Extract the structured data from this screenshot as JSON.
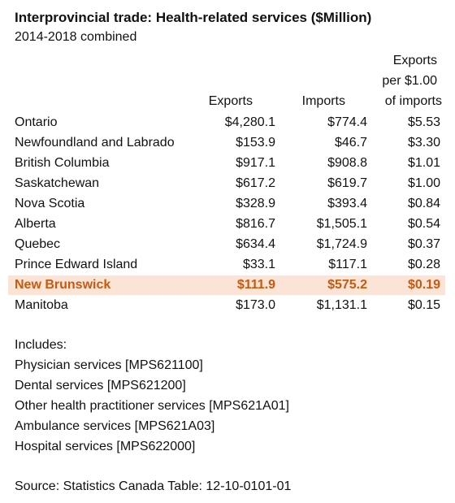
{
  "chart_data": {
    "type": "table",
    "title": "Interprovincial trade: Health-related services ($Million)",
    "subtitle": "2014-2018 combined",
    "columns": [
      "Exports",
      "Imports",
      "Exports per $1.00 of imports"
    ],
    "header_lines": {
      "exports": "Exports",
      "imports": "Imports",
      "ratio_line1": "Exports",
      "ratio_line2": "per $1.00",
      "ratio_line3": "of imports"
    },
    "rows": [
      {
        "province": "Ontario",
        "exports": "$4,280.1",
        "imports": "$774.4",
        "ratio": "$5.53",
        "highlight": false
      },
      {
        "province": "Newfoundland and Labrado",
        "exports": "$153.9",
        "imports": "$46.7",
        "ratio": "$3.30",
        "highlight": false
      },
      {
        "province": "British Columbia",
        "exports": "$917.1",
        "imports": "$908.8",
        "ratio": "$1.01",
        "highlight": false
      },
      {
        "province": "Saskatchewan",
        "exports": "$617.2",
        "imports": "$619.7",
        "ratio": "$1.00",
        "highlight": false
      },
      {
        "province": "Nova Scotia",
        "exports": "$328.9",
        "imports": "$393.4",
        "ratio": "$0.84",
        "highlight": false
      },
      {
        "province": "Alberta",
        "exports": "$816.7",
        "imports": "$1,505.1",
        "ratio": "$0.54",
        "highlight": false
      },
      {
        "province": "Quebec",
        "exports": "$634.4",
        "imports": "$1,724.9",
        "ratio": "$0.37",
        "highlight": false
      },
      {
        "province": "Prince Edward Island",
        "exports": "$33.1",
        "imports": "$117.1",
        "ratio": "$0.28",
        "highlight": false
      },
      {
        "province": "New Brunswick",
        "exports": "$111.9",
        "imports": "$575.2",
        "ratio": "$0.19",
        "highlight": true
      },
      {
        "province": "Manitoba",
        "exports": "$173.0",
        "imports": "$1,131.1",
        "ratio": "$0.15",
        "highlight": false
      }
    ],
    "highlight_color": "#fbe3d6",
    "highlight_text_color": "#c55a11"
  },
  "notes": {
    "includes_heading": "Includes:",
    "items": [
      "Physician services  [MPS621100]",
      "Dental services  [MPS621200]",
      "Other health practitioner services  [MPS621A01]",
      "Ambulance services  [MPS621A03]",
      "Hospital services  [MPS622000]"
    ],
    "source": "Source: Statistics Canada Table: 12-10-0101-01"
  }
}
